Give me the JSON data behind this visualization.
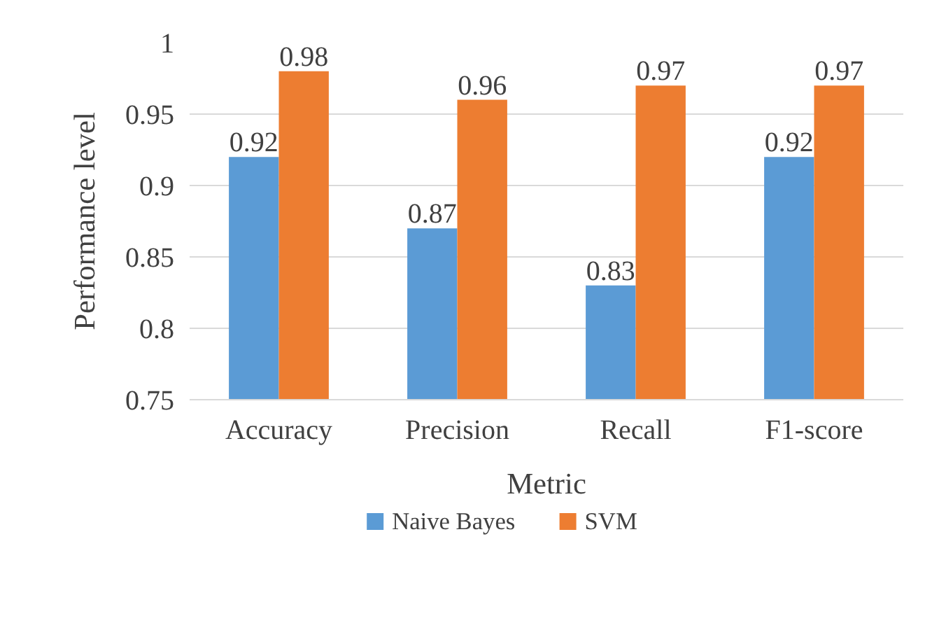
{
  "chart_data": {
    "type": "bar",
    "xlabel": "Metric",
    "ylabel": "Performance level",
    "categories": [
      "Accuracy",
      "Precision",
      "Recall",
      "F1-score"
    ],
    "series": [
      {
        "name": "Naive Bayes",
        "color": "#5b9bd5",
        "values": [
          0.92,
          0.87,
          0.83,
          0.92
        ]
      },
      {
        "name": "SVM",
        "color": "#ed7d31",
        "values": [
          0.98,
          0.96,
          0.97,
          0.97
        ]
      }
    ],
    "ylim": [
      0.75,
      1
    ],
    "yticks": [
      0.75,
      0.8,
      0.85,
      0.9,
      0.95,
      {
        "value": 1,
        "label": "1"
      }
    ],
    "grid": "y",
    "legend": "bottom",
    "data_labels": true
  }
}
